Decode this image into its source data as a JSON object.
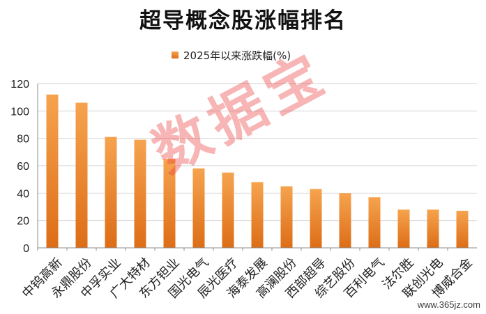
{
  "chart_data": {
    "type": "bar",
    "title": "超导概念股涨幅排名",
    "series": [
      {
        "name": "2025年以来涨跌幅(%)",
        "values": [
          112,
          106,
          81,
          79,
          65,
          58,
          55,
          48,
          45,
          43,
          40,
          37,
          28,
          28,
          27
        ]
      }
    ],
    "categories": [
      "中钨高新",
      "永鼎股份",
      "中孚实业",
      "广大特材",
      "东方钽业",
      "国光电气",
      "辰光医疗",
      "海泰发展",
      "高澜股份",
      "西部超导",
      "综艺股份",
      "百利电气",
      "法尔胜",
      "联创光电",
      "博威合金"
    ],
    "ylim": [
      0,
      120
    ],
    "yticks": [
      0,
      20,
      40,
      60,
      80,
      100,
      120
    ],
    "grid": true,
    "legend_position": "top",
    "bar_color_top": "#f6a34e",
    "bar_color_bottom": "#dd6d17"
  },
  "watermark": {
    "stamp": "数据宝",
    "site": "www.365jz.com"
  }
}
